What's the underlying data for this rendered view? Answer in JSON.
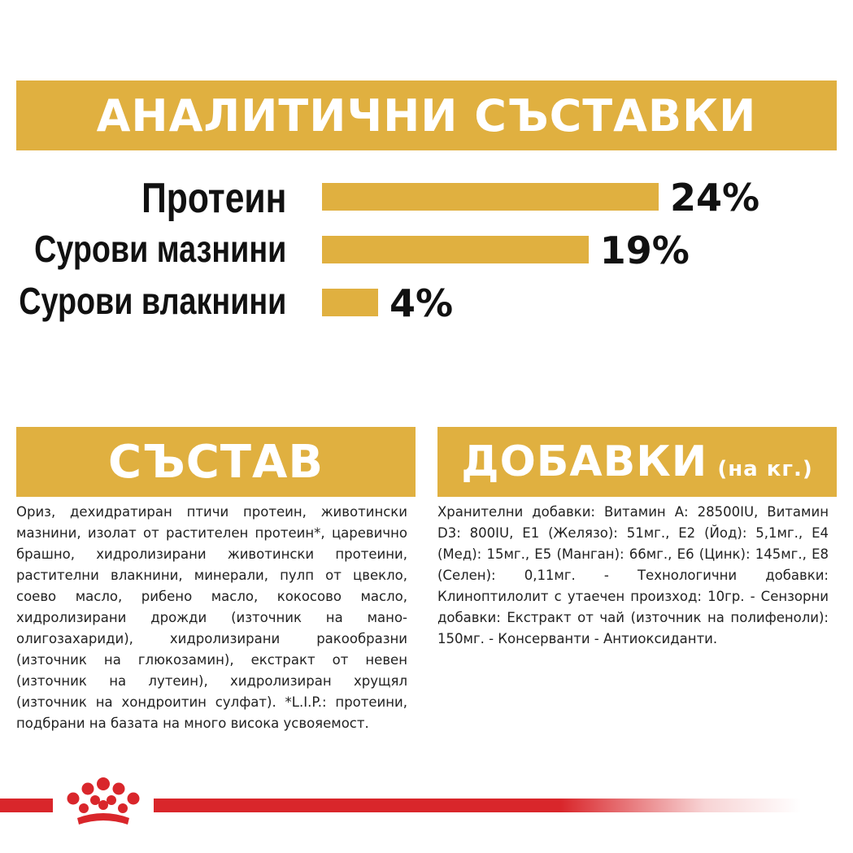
{
  "headers": {
    "analytical": "АНАЛИТИЧНИ СЪСТАВКИ",
    "composition": "СЪСТАВ",
    "additives": "ДОБАВКИ",
    "additives_unit": "(на кг.)"
  },
  "analytical": [
    {
      "label": "Протеин",
      "value": "24%",
      "percent": 24
    },
    {
      "label": "Сурови мазнини",
      "value": "19%",
      "percent": 19
    },
    {
      "label": "Сурови влакнини",
      "value": "4%",
      "percent": 4
    }
  ],
  "composition_text": "Ориз, дехидратиран птичи протеин, животински мазнини, изолат от растителен протеин*, царевично брашно, хидролизирани животински протеини, растителни влакнини, минерали, пулп от цвекло, соево масло, рибено масло, кокосово масло, хидролизирани дрожди (източник на мано- олигозахариди), хидролизирани ракообразни (източник на глюкозамин), екстракт от невен (източник на лутеин), хидролизиран хрущял (източник на хондроитин сулфат). *L.I.P.: протеини, подбрани на базата на много висока усвояемост.",
  "additives_text": "Хранителни добавки: Витамин А: 28500IU, Витамин D3: 800IU, E1 (Желязо): 51мг., E2 (Йод): 5,1мг., E4 (Мед): 15мг., E5 (Манган): 66мг., E6 (Цинк): 145мг., E8 (Селен): 0,11мг. - Технологични добавки: Клиноптилолит с утаечен произход: 10гр. - Сензорни добавки: Екстракт от чай (източник на полифеноли): 150мг. - Консерванти - Антиоксиданти.",
  "colors": {
    "accent": "#e0b040",
    "brand_red": "#d9262b"
  },
  "icons": {
    "logo": "royal-canin-crown-icon"
  }
}
